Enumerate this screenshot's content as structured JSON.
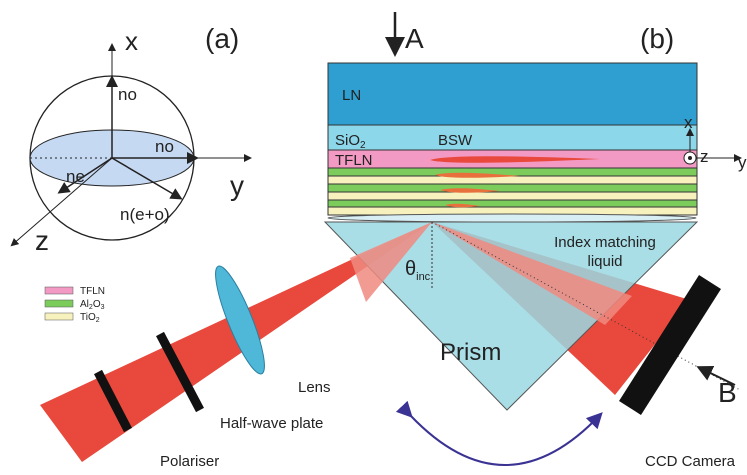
{
  "panel_a": {
    "label": "(a)",
    "axis_x": "x",
    "axis_y": "y",
    "axis_z": "z",
    "no_top": "no",
    "no_right": "no",
    "ne": "ne",
    "neo": "n(e+o)"
  },
  "panel_b": {
    "label": "(b)",
    "arrow_a": "A",
    "arrow_b": "B",
    "layers": {
      "ln": "LN",
      "sio2": {
        "base": "SiO",
        "sub": "2"
      },
      "tfln": "TFLN",
      "bsw": "BSW"
    },
    "axes": {
      "x": "x",
      "z": "z",
      "y": "y"
    },
    "index_matching": [
      "Index matching",
      "liquid"
    ],
    "theta": {
      "base": "θ",
      "sub": "inc"
    },
    "prism": "Prism",
    "lens": "Lens",
    "half_wave": "Half-wave plate",
    "polariser": "Polariser",
    "ccd": "CCD Camera"
  },
  "legend": [
    {
      "base": "TFLN",
      "sub": ""
    },
    {
      "base": "Al",
      "sub": "2",
      "base2": "O",
      "sub2": "3"
    },
    {
      "base": "TiO",
      "sub": "2"
    }
  ]
}
